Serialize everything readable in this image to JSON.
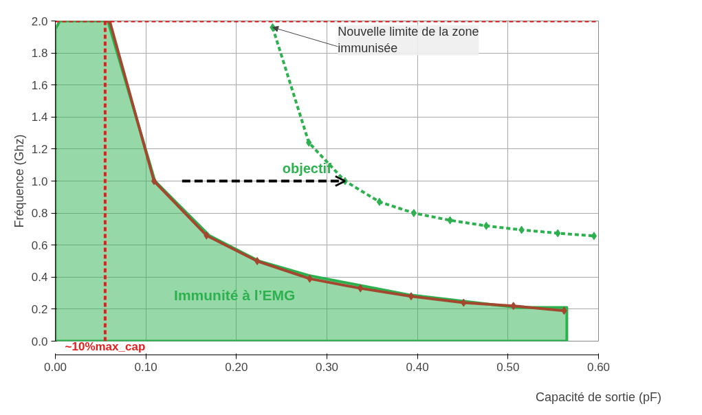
{
  "chart_data": {
    "type": "line",
    "xlabel": "Capacité de sortie (pF)",
    "ylabel": "Fréquence (Ghz)",
    "xlim": [
      0,
      0.6
    ],
    "ylim": [
      0,
      2.0
    ],
    "xticks": [
      {
        "value": 0,
        "label": "0.00"
      },
      {
        "value": 0.1,
        "label": "0.10"
      },
      {
        "value": 0.2,
        "label": "0.20"
      },
      {
        "value": 0.3,
        "label": "0.30"
      },
      {
        "value": 0.4,
        "label": "0.40"
      },
      {
        "value": 0.5,
        "label": "0.50"
      },
      {
        "value": 0.6,
        "label": "0.60"
      }
    ],
    "yticks": [
      {
        "value": 0,
        "label": "0.0"
      },
      {
        "value": 0.2,
        "label": "0.2"
      },
      {
        "value": 0.4,
        "label": "0.4"
      },
      {
        "value": 0.6,
        "label": "0.6"
      },
      {
        "value": 0.8,
        "label": "0.8"
      },
      {
        "value": 1.0,
        "label": "1.0"
      },
      {
        "value": 1.2,
        "label": "1.2"
      },
      {
        "value": 1.4,
        "label": "1.4"
      },
      {
        "value": 1.6,
        "label": "1.6"
      },
      {
        "value": 1.8,
        "label": "1.8"
      },
      {
        "value": 2.0,
        "label": "2.0"
      }
    ],
    "grid": true,
    "series": [
      {
        "type": "area",
        "color": "#2db14f",
        "x": [
          0,
          0.005,
          0.058,
          0.11,
          0.17,
          0.225,
          0.28,
          0.335,
          0.39,
          0.45,
          0.51,
          0.565
        ],
        "values": [
          1.95,
          2.0,
          2.0,
          1.0,
          0.66,
          0.5,
          0.41,
          0.35,
          0.29,
          0.25,
          0.21,
          0.21
        ],
        "marker": "none",
        "line_style": "solid"
      },
      {
        "color": "#a3472f",
        "x": [
          0.06,
          0.109,
          0.167,
          0.223,
          0.281,
          0.337,
          0.393,
          0.451,
          0.506,
          0.562
        ],
        "values": [
          2.0,
          1.0,
          0.66,
          0.5,
          0.39,
          0.33,
          0.28,
          0.24,
          0.22,
          0.19
        ],
        "marker": "diamond",
        "line_style": "solid"
      },
      {
        "color": "#2db14f",
        "x": [
          0.24,
          0.28,
          0.32,
          0.358,
          0.396,
          0.436,
          0.476,
          0.515,
          0.555,
          0.595
        ],
        "values": [
          1.96,
          1.24,
          1.0,
          0.87,
          0.8,
          0.755,
          0.72,
          0.695,
          0.674,
          0.657
        ],
        "marker": "diamond",
        "line_style": "dashed"
      }
    ],
    "ref_lines": [
      {
        "axis": "x",
        "value": 0.055,
        "label": "~10%max_cap",
        "color": "#e02020",
        "line_style": "dashed"
      },
      {
        "axis": "y",
        "value": 2.0,
        "label": null,
        "color": "#e02020",
        "line_style": "dashed"
      }
    ],
    "annotations": [
      {
        "text": "objectif",
        "x": 0.32,
        "y": 1.0
      },
      {
        "text": "Nouvelle limite de la zone immunisée",
        "x": 0.24,
        "y": 1.96
      },
      "Immunité à l’EMG"
    ]
  }
}
